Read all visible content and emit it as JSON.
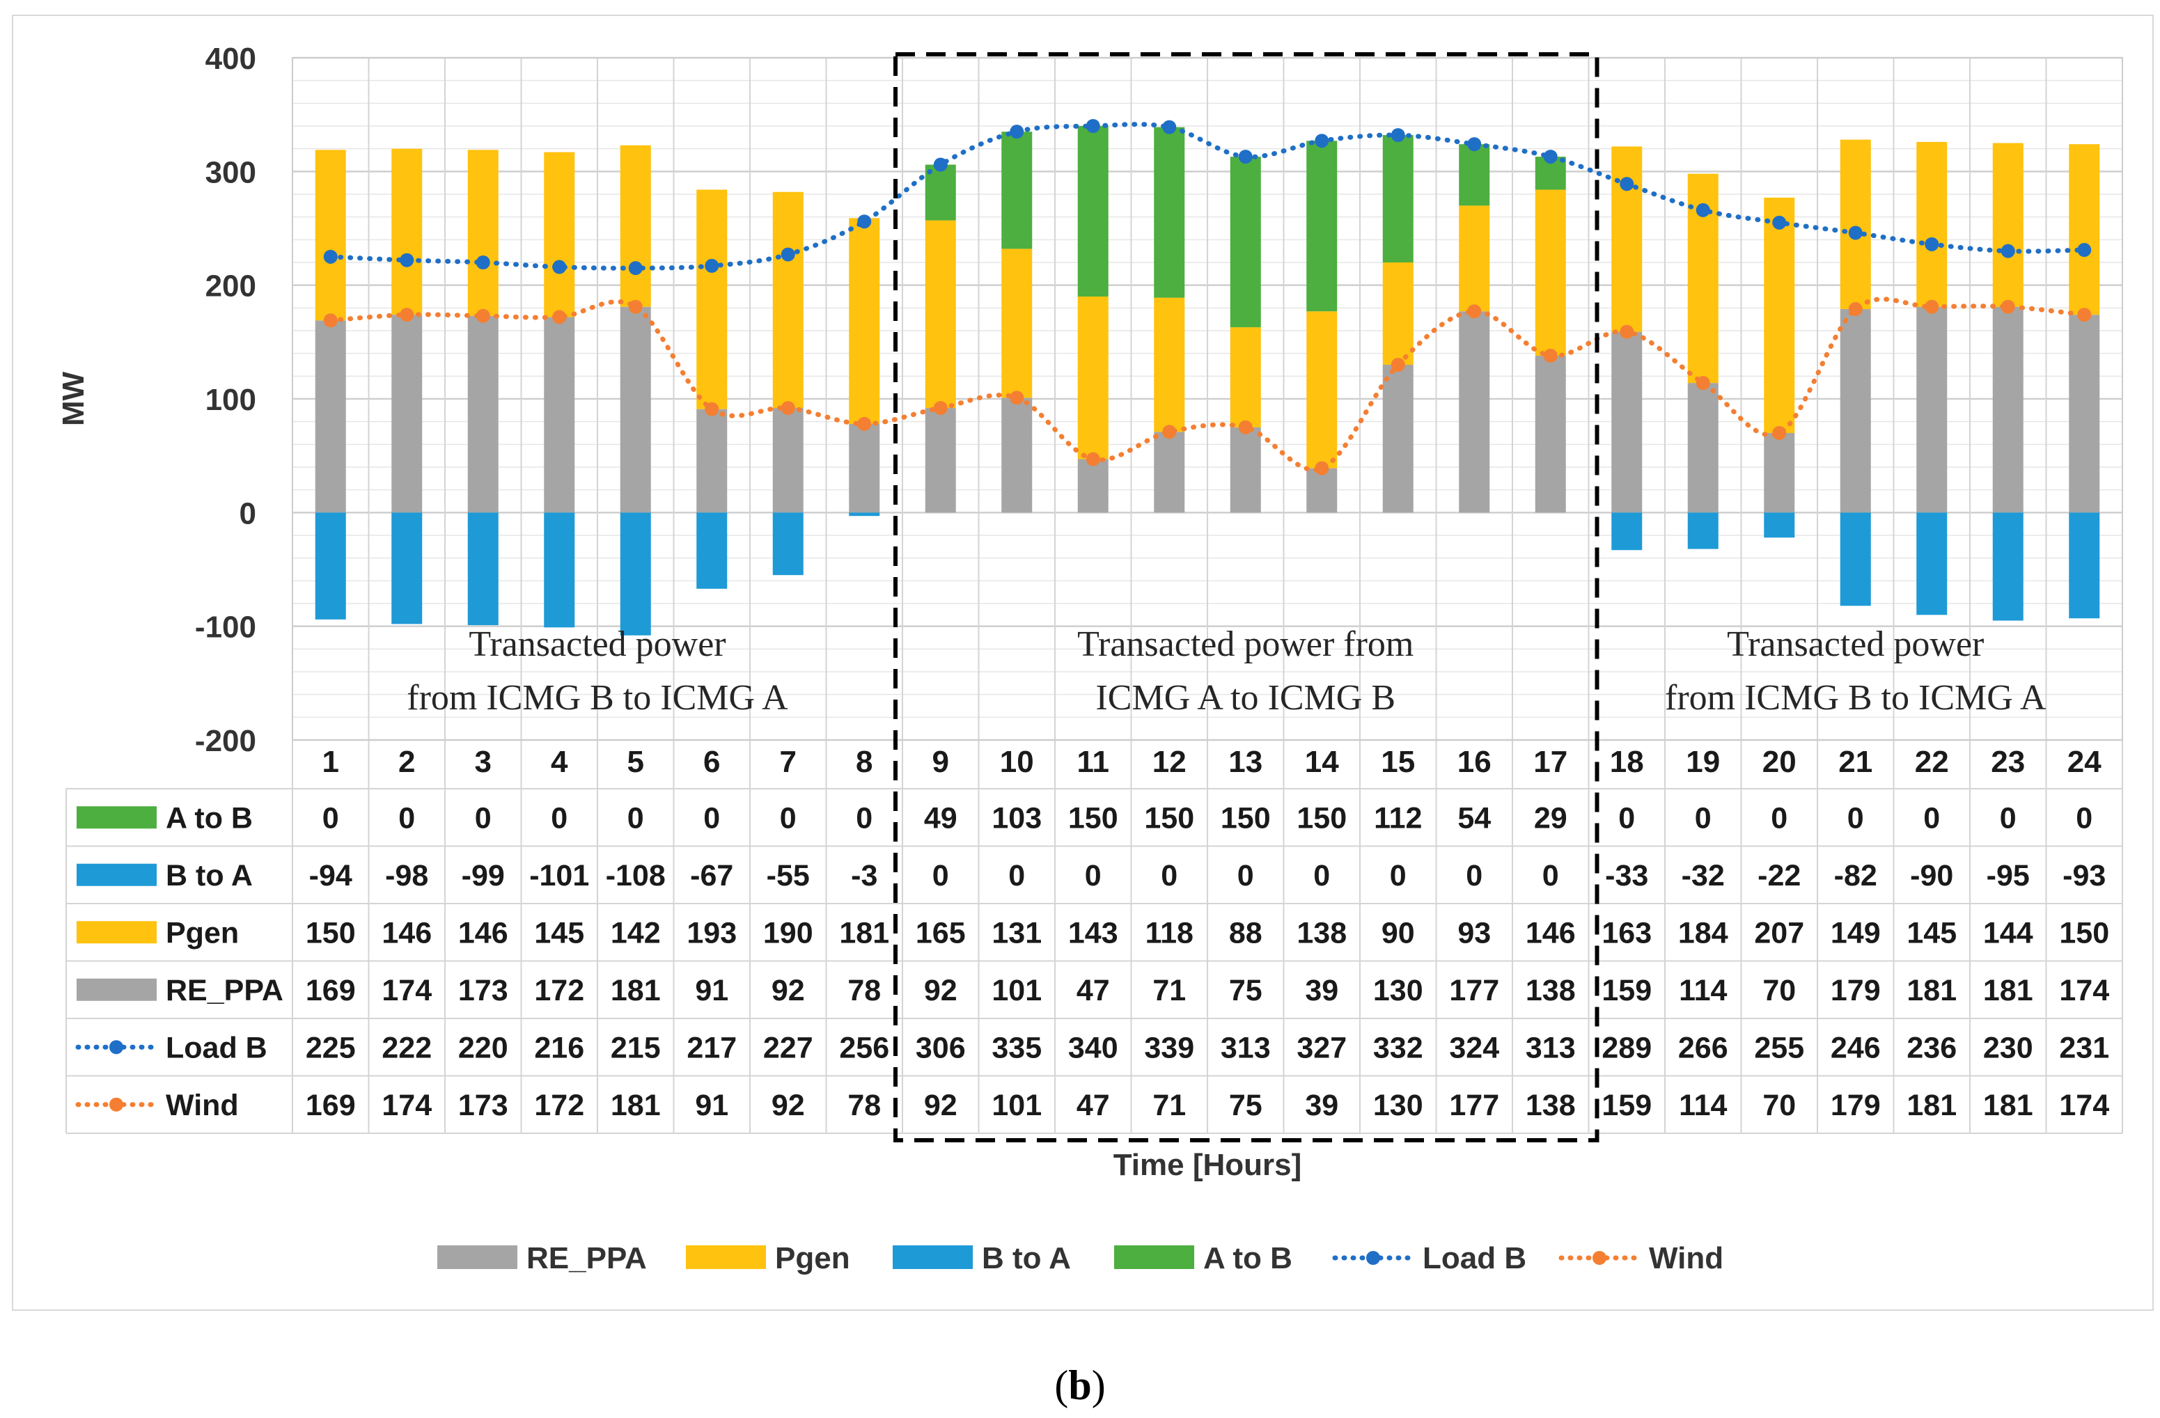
{
  "chart_data": {
    "type": "bar",
    "subtype": "stacked bar with line overlay and data table",
    "ylabel": "MW",
    "xlabel": "Time [Hours]",
    "ylim": [
      -200,
      400
    ],
    "yticks": [
      400,
      300,
      200,
      100,
      0,
      -100,
      -200
    ],
    "categories": [
      "1",
      "2",
      "3",
      "4",
      "5",
      "6",
      "7",
      "8",
      "9",
      "10",
      "11",
      "12",
      "13",
      "14",
      "15",
      "16",
      "17",
      "18",
      "19",
      "20",
      "21",
      "22",
      "23",
      "24"
    ],
    "grid": true,
    "series": [
      {
        "name": "A to B",
        "kind": "bar",
        "color": "#4CAF3F",
        "values": [
          0,
          0,
          0,
          0,
          0,
          0,
          0,
          0,
          49,
          103,
          150,
          150,
          150,
          150,
          112,
          54,
          29,
          0,
          0,
          0,
          0,
          0,
          0,
          0
        ]
      },
      {
        "name": "B to A",
        "kind": "bar",
        "color": "#1E9AD6",
        "values": [
          -94,
          -98,
          -99,
          -101,
          -108,
          -67,
          -55,
          -3,
          0,
          0,
          0,
          0,
          0,
          0,
          0,
          0,
          0,
          -33,
          -32,
          -22,
          -82,
          -90,
          -95,
          -93
        ]
      },
      {
        "name": "Pgen",
        "kind": "bar",
        "color": "#FFC20E",
        "values": [
          150,
          146,
          146,
          145,
          142,
          193,
          190,
          181,
          165,
          131,
          143,
          118,
          88,
          138,
          90,
          93,
          146,
          163,
          184,
          207,
          149,
          145,
          144,
          150
        ]
      },
      {
        "name": "RE_PPA",
        "kind": "bar",
        "color": "#A5A5A5",
        "values": [
          169,
          174,
          173,
          172,
          181,
          91,
          92,
          78,
          92,
          101,
          47,
          71,
          75,
          39,
          130,
          177,
          138,
          159,
          114,
          70,
          179,
          181,
          181,
          174
        ]
      },
      {
        "name": "Load B",
        "kind": "line",
        "color": "#1F6FC6",
        "values": [
          225,
          222,
          220,
          216,
          215,
          217,
          227,
          256,
          306,
          335,
          340,
          339,
          313,
          327,
          332,
          324,
          313,
          289,
          266,
          255,
          246,
          236,
          230,
          231
        ]
      },
      {
        "name": "Wind",
        "kind": "line",
        "color": "#F47F32",
        "values": [
          169,
          174,
          173,
          172,
          181,
          91,
          92,
          78,
          92,
          101,
          47,
          71,
          75,
          39,
          130,
          177,
          138,
          159,
          114,
          70,
          179,
          181,
          181,
          174
        ]
      }
    ],
    "table_rows": [
      "A to B",
      "B to A",
      "Pgen",
      "RE_PPA",
      "Load B",
      "Wind"
    ],
    "legend_order": [
      "RE_PPA",
      "Pgen",
      "B to A",
      "A to B",
      "Load B",
      "Wind"
    ],
    "legend_position": "bottom",
    "highlight_hours": [
      9,
      17
    ],
    "annotations": [
      {
        "lines": [
          "Transacted power",
          "from ICMG B to ICMG A"
        ],
        "hours": [
          1,
          8
        ]
      },
      {
        "lines": [
          "Transacted power from",
          "ICMG A to ICMG B"
        ],
        "hours": [
          9,
          17
        ]
      },
      {
        "lines": [
          "Transacted power",
          "from ICMG B to ICMG A"
        ],
        "hours": [
          18,
          24
        ]
      }
    ]
  },
  "caption": {
    "open": "(",
    "letter": "b",
    "close": ")"
  }
}
